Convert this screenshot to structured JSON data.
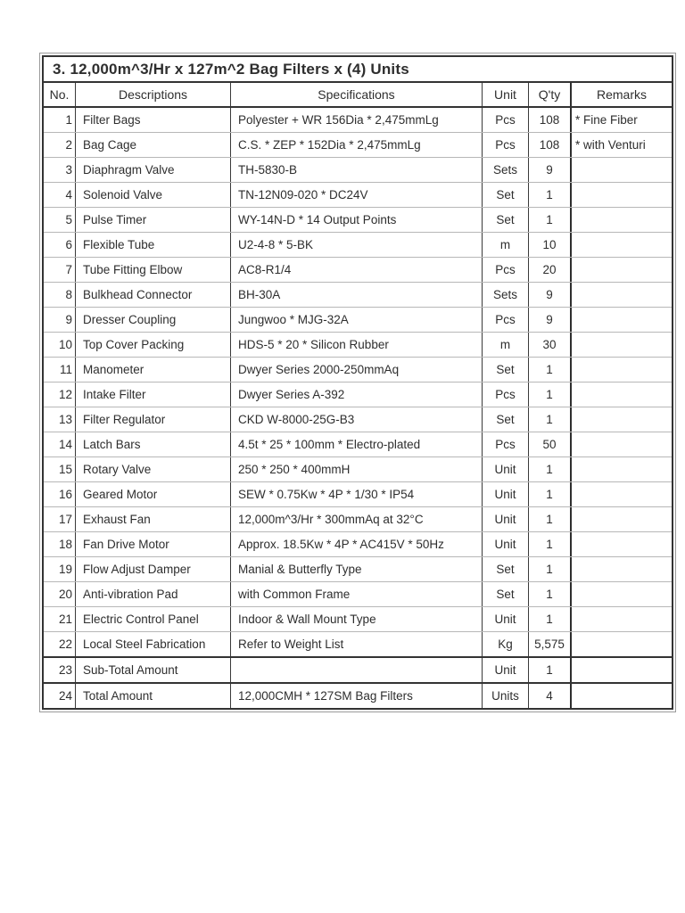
{
  "table": {
    "title": "3. 12,000m^3/Hr x 127m^2 Bag Filters x (4) Units",
    "columns": [
      {
        "label": "No."
      },
      {
        "label": "Descriptions"
      },
      {
        "label": "Specifications"
      },
      {
        "label": "Unit"
      },
      {
        "label": "Q'ty"
      },
      {
        "label": "Remarks"
      }
    ],
    "rows": [
      {
        "no": "1",
        "description": "Filter Bags",
        "specification": "Polyester + WR 156Dia * 2,475mmLg",
        "unit": "Pcs",
        "qty": "108",
        "remarks": "* Fine Fiber"
      },
      {
        "no": "2",
        "description": "Bag Cage",
        "specification": "C.S. * ZEP * 152Dia * 2,475mmLg",
        "unit": "Pcs",
        "qty": "108",
        "remarks": "* with Venturi"
      },
      {
        "no": "3",
        "description": "Diaphragm Valve",
        "specification": "TH-5830-B",
        "unit": "Sets",
        "qty": "9",
        "remarks": ""
      },
      {
        "no": "4",
        "description": "Solenoid Valve",
        "specification": "TN-12N09-020 * DC24V",
        "unit": "Set",
        "qty": "1",
        "remarks": ""
      },
      {
        "no": "5",
        "description": "Pulse Timer",
        "specification": "WY-14N-D * 14 Output Points",
        "unit": "Set",
        "qty": "1",
        "remarks": ""
      },
      {
        "no": "6",
        "description": "Flexible Tube",
        "specification": "U2-4-8 * 5-BK",
        "unit": "m",
        "qty": "10",
        "remarks": ""
      },
      {
        "no": "7",
        "description": "Tube Fitting Elbow",
        "specification": "AC8-R1/4",
        "unit": "Pcs",
        "qty": "20",
        "remarks": ""
      },
      {
        "no": "8",
        "description": "Bulkhead Connector",
        "specification": "BH-30A",
        "unit": "Sets",
        "qty": "9",
        "remarks": ""
      },
      {
        "no": "9",
        "description": "Dresser Coupling",
        "specification": "Jungwoo * MJG-32A",
        "unit": "Pcs",
        "qty": "9",
        "remarks": ""
      },
      {
        "no": "10",
        "description": "Top Cover Packing",
        "specification": "HDS-5 * 20 * Silicon Rubber",
        "unit": "m",
        "qty": "30",
        "remarks": ""
      },
      {
        "no": "11",
        "description": "Manometer",
        "specification": "Dwyer Series 2000-250mmAq",
        "unit": "Set",
        "qty": "1",
        "remarks": ""
      },
      {
        "no": "12",
        "description": "Intake Filter",
        "specification": "Dwyer Series A-392",
        "unit": "Pcs",
        "qty": "1",
        "remarks": ""
      },
      {
        "no": "13",
        "description": "Filter Regulator",
        "specification": "CKD W-8000-25G-B3",
        "unit": "Set",
        "qty": "1",
        "remarks": ""
      },
      {
        "no": "14",
        "description": "Latch Bars",
        "specification": "4.5t * 25 * 100mm * Electro-plated",
        "unit": "Pcs",
        "qty": "50",
        "remarks": ""
      },
      {
        "no": "15",
        "description": "Rotary Valve",
        "specification": "250 * 250 * 400mmH",
        "unit": "Unit",
        "qty": "1",
        "remarks": ""
      },
      {
        "no": "16",
        "description": "Geared Motor",
        "specification": "SEW * 0.75Kw * 4P * 1/30 * IP54",
        "unit": "Unit",
        "qty": "1",
        "remarks": ""
      },
      {
        "no": "17",
        "description": "Exhaust Fan",
        "specification": "12,000m^3/Hr * 300mmAq at 32°C",
        "unit": "Unit",
        "qty": "1",
        "remarks": ""
      },
      {
        "no": "18",
        "description": "Fan Drive Motor",
        "specification": "Approx. 18.5Kw * 4P * AC415V * 50Hz",
        "unit": "Unit",
        "qty": "1",
        "remarks": ""
      },
      {
        "no": "19",
        "description": "Flow Adjust Damper",
        "specification": "Manial & Butterfly Type",
        "unit": "Set",
        "qty": "1",
        "remarks": ""
      },
      {
        "no": "20",
        "description": "Anti-vibration Pad",
        "specification": "with Common Frame",
        "unit": "Set",
        "qty": "1",
        "remarks": ""
      },
      {
        "no": "21",
        "description": "Electric Control Panel",
        "specification": "Indoor & Wall Mount Type",
        "unit": "Unit",
        "qty": "1",
        "remarks": ""
      },
      {
        "no": "22",
        "description": "Local Steel Fabrication",
        "specification": "Refer to Weight List",
        "unit": "Kg",
        "qty": "5,575",
        "remarks": ""
      },
      {
        "no": "23",
        "description": "Sub-Total Amount",
        "specification": "",
        "unit": "Unit",
        "qty": "1",
        "remarks": "",
        "heavy_top": true
      },
      {
        "no": "24",
        "description": "Total Amount",
        "specification": "12,000CMH * 127SM Bag Filters",
        "unit": "Units",
        "qty": "4",
        "remarks": "",
        "heavy_top": true
      }
    ],
    "colors": {
      "border_dark": "#333333",
      "border_light": "#b7b7b7",
      "outer_line": "#9a9a9a",
      "text": "#2e2e2e",
      "background": "#ffffff"
    }
  }
}
